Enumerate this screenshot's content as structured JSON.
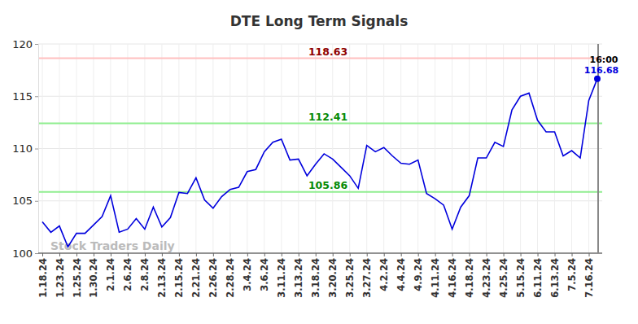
{
  "chart_data": {
    "type": "line",
    "title": "DTE Long Term Signals",
    "categories": [
      "1.18.24",
      null,
      "1.23.24",
      null,
      "1.25.24",
      null,
      "1.30.24",
      null,
      "2.1.24",
      null,
      "2.6.24",
      null,
      "2.8.24",
      null,
      "2.13.24",
      null,
      "2.15.24",
      null,
      "2.21.24",
      null,
      "2.26.24",
      null,
      "2.28.24",
      null,
      "3.4.24",
      null,
      "3.6.24",
      null,
      "3.11.24",
      null,
      "3.13.24",
      null,
      "3.18.24",
      null,
      "3.20.24",
      null,
      "3.25.24",
      null,
      "3.27.24",
      null,
      "4.2.24",
      null,
      "4.4.24",
      null,
      "4.9.24",
      null,
      "4.11.24",
      null,
      "4.16.24",
      null,
      "4.18.24",
      null,
      "4.23.24",
      null,
      "4.25.24",
      null,
      "5.15.24",
      null,
      "6.11.24",
      null,
      "6.13.24",
      null,
      "7.5.24",
      null,
      "7.16.24",
      null
    ],
    "values": [
      103.0,
      102.0,
      102.6,
      100.6,
      101.9,
      101.9,
      102.7,
      103.5,
      105.5,
      102.0,
      102.3,
      103.3,
      102.3,
      104.4,
      102.5,
      103.4,
      105.8,
      105.7,
      107.2,
      105.1,
      104.3,
      105.4,
      106.1,
      106.3,
      107.8,
      108.0,
      109.7,
      110.6,
      110.9,
      108.9,
      109.0,
      107.4,
      108.5,
      109.5,
      109.0,
      108.2,
      107.4,
      106.2,
      110.3,
      109.7,
      110.1,
      109.3,
      108.6,
      108.5,
      108.9,
      105.7,
      105.2,
      104.6,
      102.3,
      104.4,
      105.5,
      109.1,
      109.1,
      110.6,
      110.2,
      113.7,
      115.0,
      115.3,
      112.7,
      111.6,
      111.6,
      109.3,
      109.8,
      109.1,
      114.6,
      116.68
    ],
    "color": "#0000dd",
    "ylim": [
      100,
      120
    ],
    "yticks": [
      100,
      105,
      110,
      115,
      120
    ],
    "grid": true,
    "reference_lines": [
      {
        "value": 118.63,
        "color": "#ffc0c0"
      },
      {
        "value": 112.41,
        "color": "#90ee90"
      },
      {
        "value": 105.86,
        "color": "#90ee90"
      }
    ],
    "annotations": [
      {
        "text": "16:00"
      }
    ],
    "watermark": "Stock Traders Daily"
  }
}
